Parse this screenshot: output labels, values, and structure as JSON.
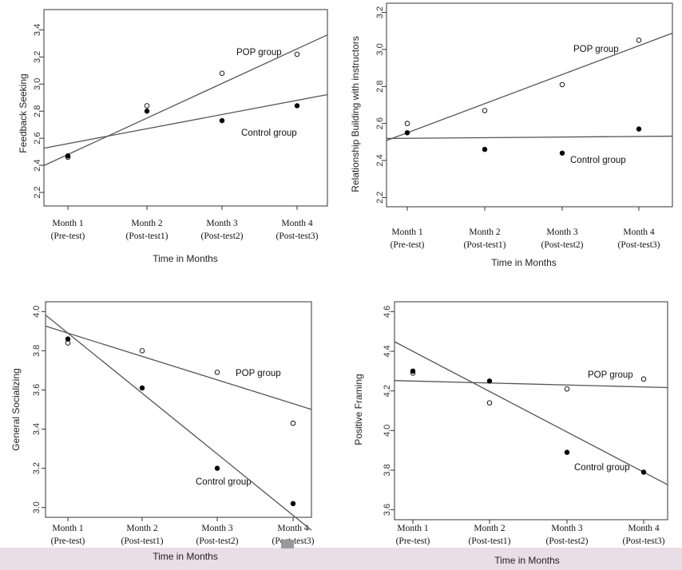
{
  "colors": {
    "band": "#e9dde6",
    "line": "#555555",
    "pop_marker_fill": "#ffffff",
    "control_marker_fill": "#000000"
  },
  "charts": {
    "top_left": {
      "ylabel": "Feedback Seeking",
      "xlabel": "Time in Months",
      "pop_label": "POP group",
      "control_label": "Control  group"
    },
    "top_right": {
      "ylabel": "Relationship Building with instructors",
      "xlabel": "Time in Months",
      "pop_label": "POP group",
      "control_label": "Control  group"
    },
    "bottom_left": {
      "ylabel": "General Socializing",
      "xlabel": "Time in Months",
      "pop_label": "POP group",
      "control_label": "Control  group"
    },
    "bottom_right": {
      "ylabel": "Positive Framing",
      "xlabel": "Time in Months",
      "pop_label": "POP group",
      "control_label": "Control  group"
    }
  },
  "chart_data": [
    {
      "type": "scatter",
      "ylabel": "Feedback Seeking",
      "xlabel": "Time in Months",
      "categories": [
        [
          "Month 1",
          "(Pre-test)"
        ],
        [
          "Month 2",
          "(Post-test1)"
        ],
        [
          "Month 3",
          "(Post-test2)"
        ],
        [
          "Month 4",
          "(Post-test3)"
        ]
      ],
      "ylim": [
        2.1,
        3.55
      ],
      "yticks": [
        "2.2",
        "2.4",
        "2.6",
        "2.8",
        "3.0",
        "3.2",
        "3.4"
      ],
      "series": [
        {
          "name": "POP group",
          "marker": "open",
          "values": [
            2.46,
            2.84,
            3.08,
            3.22
          ],
          "fit": [
            2.48,
            3.26
          ]
        },
        {
          "name": "Control  group",
          "marker": "filled",
          "values": [
            2.47,
            2.8,
            2.73,
            2.84
          ],
          "fit": [
            2.56,
            2.88
          ]
        }
      ]
    },
    {
      "type": "scatter",
      "ylabel": "Relationship Building with instructors",
      "xlabel": "Time in Months",
      "categories": [
        [
          "Month 1",
          "(Pre-test)"
        ],
        [
          "Month 2",
          "(Post-test1)"
        ],
        [
          "Month 3",
          "(Post-test2)"
        ],
        [
          "Month 4",
          "(Post-test3)"
        ]
      ],
      "ylim": [
        2.15,
        3.25
      ],
      "yticks": [
        "2.2",
        "2.4",
        "2.6",
        "2.8",
        "3.0",
        "3.2"
      ],
      "series": [
        {
          "name": "POP group",
          "marker": "open",
          "values": [
            2.6,
            2.67,
            2.81,
            3.05
          ],
          "fit": [
            2.55,
            3.02
          ]
        },
        {
          "name": "Control  group",
          "marker": "filled",
          "values": [
            2.55,
            2.46,
            2.44,
            2.57
          ],
          "fit": [
            2.52,
            2.53
          ]
        }
      ]
    },
    {
      "type": "scatter",
      "ylabel": "General Socializing",
      "xlabel": "Time in Months",
      "categories": [
        [
          "Month 1",
          "(Pre-test)"
        ],
        [
          "Month 2",
          "(Post-test1)"
        ],
        [
          "Month 3",
          "(Post-test2)"
        ],
        [
          "Month 4",
          "(Post-test3)"
        ]
      ],
      "ylim": [
        2.95,
        4.05
      ],
      "yticks": [
        "3.0",
        "3.2",
        "3.4",
        "3.6",
        "3.8",
        "4.0"
      ],
      "series": [
        {
          "name": "POP group",
          "marker": "open",
          "values": [
            3.84,
            3.8,
            3.69,
            3.43
          ],
          "fit": [
            3.89,
            3.53
          ]
        },
        {
          "name": "Control  group",
          "marker": "filled",
          "values": [
            3.86,
            3.61,
            3.2,
            3.02
          ],
          "fit": [
            3.89,
            2.96
          ]
        }
      ]
    },
    {
      "type": "scatter",
      "ylabel": "Positive Framing",
      "xlabel": "Time in Months",
      "categories": [
        [
          "Month 1",
          "(Pre-test)"
        ],
        [
          "Month 2",
          "(Post-test1)"
        ],
        [
          "Month 3",
          "(Post-test2)"
        ],
        [
          "Month 4",
          "(Post-test3)"
        ]
      ],
      "ylim": [
        3.55,
        4.65
      ],
      "yticks": [
        "3.6",
        "3.8",
        "4.0",
        "4.2",
        "4.4",
        "4.6"
      ],
      "series": [
        {
          "name": "POP group",
          "marker": "open",
          "values": [
            4.29,
            4.14,
            4.21,
            4.26
          ],
          "fit": [
            4.25,
            4.22
          ]
        },
        {
          "name": "Control  group",
          "marker": "filled",
          "values": [
            4.3,
            4.25,
            3.89,
            3.79
          ],
          "fit": [
            4.4,
            3.79
          ]
        }
      ]
    }
  ]
}
